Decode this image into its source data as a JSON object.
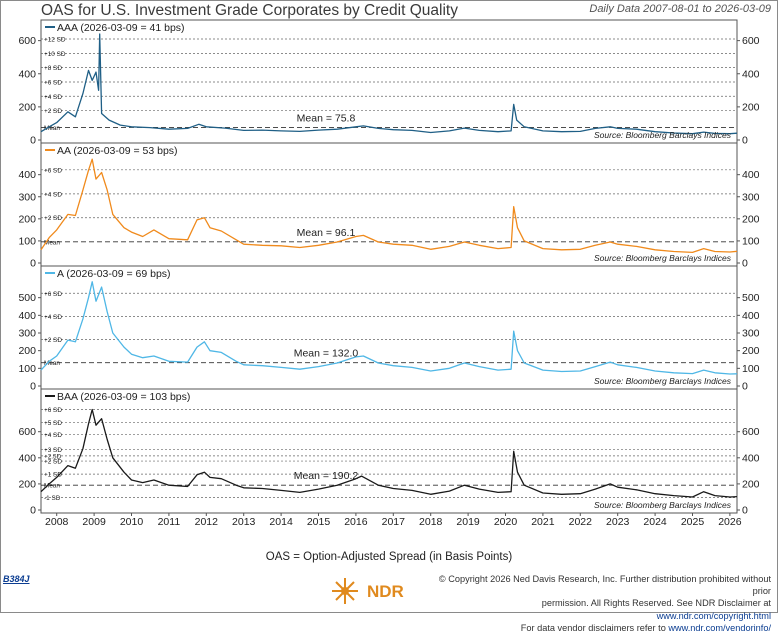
{
  "title": "OAS for U.S. Investment Grade Corporates by Credit Quality",
  "date_range": "Daily Data 2007-08-01 to 2026-03-09",
  "footnote": "OAS = Option-Adjusted Spread (in Basis Points)",
  "chart_id": "B384J",
  "logo_text": "NDR",
  "copyright": {
    "line1": "© Copyright 2026 Ned Davis Research, Inc. Further distribution prohibited without prior",
    "line2a": "permission. All Rights Reserved. See NDR Disclaimer at ",
    "line2b": "www.ndr.com/copyright.html",
    "line3a": "For data vendor disclaimers refer to ",
    "line3b": "www.ndr.com/vendorinfo/"
  },
  "chart_data": {
    "type": "line",
    "x_ticks": [
      "2008",
      "2009",
      "2010",
      "2011",
      "2012",
      "2013",
      "2014",
      "2015",
      "2016",
      "2017",
      "2018",
      "2019",
      "2020",
      "2021",
      "2022",
      "2023",
      "2024",
      "2025",
      "2026"
    ],
    "x_range": [
      "2007-08-01",
      "2026-03-09"
    ],
    "panels": [
      {
        "label": "AAA (2026-03-09 = 41 bps)",
        "color": "#1f5f86",
        "mean_label": "Mean = 75.8",
        "mean": 75.8,
        "ylim": [
          0,
          640
        ],
        "y_ticks": [
          0,
          200,
          400,
          600
        ],
        "sd_labels": [
          "+12 SD",
          "+10 SD",
          "+8 SD",
          "+6 SD",
          "+4 SD",
          "+2 SD",
          "Mean"
        ],
        "sd_values": [
          610,
          523,
          437,
          350,
          264,
          177,
          75.8
        ],
        "source": "Source:  Bloomberg Barclays Indices",
        "points": [
          [
            2007.58,
            50
          ],
          [
            2007.8,
            80
          ],
          [
            2008.0,
            105
          ],
          [
            2008.3,
            170
          ],
          [
            2008.5,
            140
          ],
          [
            2008.7,
            280
          ],
          [
            2008.85,
            420
          ],
          [
            2008.95,
            360
          ],
          [
            2009.05,
            410
          ],
          [
            2009.12,
            300
          ],
          [
            2009.15,
            640
          ],
          [
            2009.2,
            160
          ],
          [
            2009.4,
            120
          ],
          [
            2009.7,
            90
          ],
          [
            2010.0,
            80
          ],
          [
            2010.5,
            75
          ],
          [
            2011.0,
            65
          ],
          [
            2011.5,
            70
          ],
          [
            2011.8,
            95
          ],
          [
            2012.0,
            80
          ],
          [
            2012.5,
            72
          ],
          [
            2013.0,
            58
          ],
          [
            2013.5,
            60
          ],
          [
            2014.0,
            55
          ],
          [
            2014.5,
            52
          ],
          [
            2015.0,
            60
          ],
          [
            2015.5,
            65
          ],
          [
            2016.0,
            80
          ],
          [
            2016.2,
            85
          ],
          [
            2016.6,
            70
          ],
          [
            2017.0,
            62
          ],
          [
            2017.5,
            58
          ],
          [
            2018.0,
            45
          ],
          [
            2018.5,
            55
          ],
          [
            2018.9,
            72
          ],
          [
            2019.3,
            58
          ],
          [
            2019.8,
            50
          ],
          [
            2020.15,
            55
          ],
          [
            2020.22,
            215
          ],
          [
            2020.3,
            120
          ],
          [
            2020.5,
            80
          ],
          [
            2021.0,
            55
          ],
          [
            2021.5,
            50
          ],
          [
            2022.0,
            52
          ],
          [
            2022.4,
            70
          ],
          [
            2022.8,
            80
          ],
          [
            2023.0,
            70
          ],
          [
            2023.5,
            65
          ],
          [
            2024.0,
            50
          ],
          [
            2024.5,
            42
          ],
          [
            2025.0,
            38
          ],
          [
            2025.3,
            48
          ],
          [
            2025.6,
            40
          ],
          [
            2026.0,
            38
          ],
          [
            2026.19,
            41
          ]
        ]
      },
      {
        "label": "AA (2026-03-09 = 53 bps)",
        "color": "#f08a1c",
        "mean_label": "Mean = 96.1",
        "mean": 96.1,
        "ylim": [
          0,
          480
        ],
        "y_ticks": [
          0,
          100,
          200,
          300,
          400
        ],
        "sd_labels": [
          "+6 SD",
          "+4 SD",
          "+2 SD",
          "Mean"
        ],
        "sd_values": [
          422,
          313,
          205,
          96.1
        ],
        "source": "Source:  Bloomberg Barclays Indices",
        "points": [
          [
            2007.58,
            60
          ],
          [
            2007.8,
            115
          ],
          [
            2008.0,
            150
          ],
          [
            2008.3,
            220
          ],
          [
            2008.5,
            215
          ],
          [
            2008.7,
            330
          ],
          [
            2008.85,
            420
          ],
          [
            2008.95,
            470
          ],
          [
            2009.05,
            380
          ],
          [
            2009.2,
            410
          ],
          [
            2009.35,
            330
          ],
          [
            2009.5,
            220
          ],
          [
            2009.8,
            160
          ],
          [
            2010.0,
            140
          ],
          [
            2010.3,
            120
          ],
          [
            2010.6,
            150
          ],
          [
            2011.0,
            110
          ],
          [
            2011.5,
            105
          ],
          [
            2011.75,
            195
          ],
          [
            2011.95,
            205
          ],
          [
            2012.1,
            160
          ],
          [
            2012.4,
            145
          ],
          [
            2012.8,
            105
          ],
          [
            2013.0,
            85
          ],
          [
            2013.5,
            80
          ],
          [
            2014.0,
            78
          ],
          [
            2014.5,
            70
          ],
          [
            2015.0,
            80
          ],
          [
            2015.5,
            95
          ],
          [
            2016.0,
            120
          ],
          [
            2016.2,
            125
          ],
          [
            2016.6,
            95
          ],
          [
            2017.0,
            85
          ],
          [
            2017.5,
            80
          ],
          [
            2018.0,
            62
          ],
          [
            2018.5,
            75
          ],
          [
            2018.9,
            95
          ],
          [
            2019.3,
            80
          ],
          [
            2019.8,
            65
          ],
          [
            2020.15,
            70
          ],
          [
            2020.22,
            255
          ],
          [
            2020.32,
            160
          ],
          [
            2020.5,
            100
          ],
          [
            2021.0,
            65
          ],
          [
            2021.5,
            60
          ],
          [
            2022.0,
            62
          ],
          [
            2022.4,
            80
          ],
          [
            2022.8,
            95
          ],
          [
            2023.0,
            85
          ],
          [
            2023.5,
            75
          ],
          [
            2024.0,
            60
          ],
          [
            2024.5,
            52
          ],
          [
            2025.0,
            48
          ],
          [
            2025.3,
            65
          ],
          [
            2025.6,
            52
          ],
          [
            2026.0,
            50
          ],
          [
            2026.19,
            53
          ]
        ]
      },
      {
        "label": "A (2026-03-09 = 69 bps)",
        "color": "#4fb7e6",
        "mean_label": "Mean = 132.0",
        "mean": 132.0,
        "ylim": [
          0,
          600
        ],
        "y_ticks": [
          0,
          100,
          200,
          300,
          400,
          500
        ],
        "sd_labels": [
          "+6 SD",
          "+4 SD",
          "+2 SD",
          "Mean"
        ],
        "sd_values": [
          525,
          394,
          263,
          132
        ],
        "source": "Source:  Bloomberg Barclays Indices",
        "points": [
          [
            2007.58,
            90
          ],
          [
            2007.8,
            140
          ],
          [
            2008.0,
            170
          ],
          [
            2008.3,
            260
          ],
          [
            2008.5,
            250
          ],
          [
            2008.7,
            380
          ],
          [
            2008.85,
            500
          ],
          [
            2008.95,
            590
          ],
          [
            2009.05,
            480
          ],
          [
            2009.2,
            560
          ],
          [
            2009.35,
            420
          ],
          [
            2009.5,
            300
          ],
          [
            2009.8,
            220
          ],
          [
            2010.0,
            180
          ],
          [
            2010.3,
            160
          ],
          [
            2010.6,
            170
          ],
          [
            2011.0,
            140
          ],
          [
            2011.5,
            135
          ],
          [
            2011.75,
            220
          ],
          [
            2011.95,
            250
          ],
          [
            2012.1,
            200
          ],
          [
            2012.4,
            190
          ],
          [
            2012.8,
            140
          ],
          [
            2013.0,
            120
          ],
          [
            2013.5,
            115
          ],
          [
            2014.0,
            105
          ],
          [
            2014.5,
            95
          ],
          [
            2015.0,
            110
          ],
          [
            2015.5,
            130
          ],
          [
            2016.0,
            165
          ],
          [
            2016.2,
            170
          ],
          [
            2016.6,
            130
          ],
          [
            2017.0,
            115
          ],
          [
            2017.5,
            105
          ],
          [
            2018.0,
            85
          ],
          [
            2018.5,
            100
          ],
          [
            2018.9,
            130
          ],
          [
            2019.3,
            110
          ],
          [
            2019.8,
            90
          ],
          [
            2020.15,
            95
          ],
          [
            2020.22,
            310
          ],
          [
            2020.32,
            200
          ],
          [
            2020.5,
            130
          ],
          [
            2021.0,
            90
          ],
          [
            2021.5,
            82
          ],
          [
            2022.0,
            85
          ],
          [
            2022.4,
            110
          ],
          [
            2022.8,
            135
          ],
          [
            2023.0,
            120
          ],
          [
            2023.5,
            105
          ],
          [
            2024.0,
            85
          ],
          [
            2024.5,
            75
          ],
          [
            2025.0,
            70
          ],
          [
            2025.3,
            90
          ],
          [
            2025.6,
            75
          ],
          [
            2026.0,
            68
          ],
          [
            2026.19,
            69
          ]
        ]
      },
      {
        "label": "BAA (2026-03-09 = 103 bps)",
        "color": "#1a1a1a",
        "mean_label": "Mean = 190.2",
        "mean": 190.2,
        "ylim": [
          0,
          820
        ],
        "y_ticks": [
          0,
          200,
          400,
          600
        ],
        "sd_labels": [
          "+6 SD",
          "+5 SD",
          "+4 SD",
          "+3 SD",
          "+2.5D",
          "+2 SD",
          "+1 SD",
          "Mean",
          "-1 SD"
        ],
        "sd_values": [
          770,
          670,
          580,
          465,
          415,
          375,
          275,
          190.2,
          95
        ],
        "source": "Source:  Bloomberg Barclays Indices",
        "points": [
          [
            2007.58,
            140
          ],
          [
            2007.8,
            200
          ],
          [
            2008.0,
            250
          ],
          [
            2008.3,
            340
          ],
          [
            2008.5,
            320
          ],
          [
            2008.7,
            470
          ],
          [
            2008.85,
            660
          ],
          [
            2008.95,
            770
          ],
          [
            2009.05,
            650
          ],
          [
            2009.2,
            700
          ],
          [
            2009.35,
            540
          ],
          [
            2009.5,
            400
          ],
          [
            2009.8,
            290
          ],
          [
            2010.0,
            230
          ],
          [
            2010.3,
            210
          ],
          [
            2010.6,
            230
          ],
          [
            2011.0,
            190
          ],
          [
            2011.5,
            180
          ],
          [
            2011.75,
            270
          ],
          [
            2011.95,
            290
          ],
          [
            2012.1,
            250
          ],
          [
            2012.4,
            240
          ],
          [
            2012.8,
            190
          ],
          [
            2013.0,
            170
          ],
          [
            2013.5,
            165
          ],
          [
            2014.0,
            150
          ],
          [
            2014.5,
            135
          ],
          [
            2015.0,
            160
          ],
          [
            2015.5,
            190
          ],
          [
            2016.0,
            240
          ],
          [
            2016.15,
            260
          ],
          [
            2016.6,
            190
          ],
          [
            2017.0,
            165
          ],
          [
            2017.5,
            150
          ],
          [
            2018.0,
            120
          ],
          [
            2018.5,
            145
          ],
          [
            2018.9,
            190
          ],
          [
            2019.3,
            160
          ],
          [
            2019.8,
            135
          ],
          [
            2020.15,
            140
          ],
          [
            2020.22,
            450
          ],
          [
            2020.32,
            290
          ],
          [
            2020.5,
            190
          ],
          [
            2021.0,
            130
          ],
          [
            2021.5,
            120
          ],
          [
            2022.0,
            125
          ],
          [
            2022.4,
            160
          ],
          [
            2022.8,
            200
          ],
          [
            2023.0,
            175
          ],
          [
            2023.5,
            155
          ],
          [
            2024.0,
            125
          ],
          [
            2024.5,
            110
          ],
          [
            2025.0,
            100
          ],
          [
            2025.3,
            140
          ],
          [
            2025.6,
            110
          ],
          [
            2026.0,
            100
          ],
          [
            2026.19,
            103
          ]
        ]
      }
    ]
  }
}
